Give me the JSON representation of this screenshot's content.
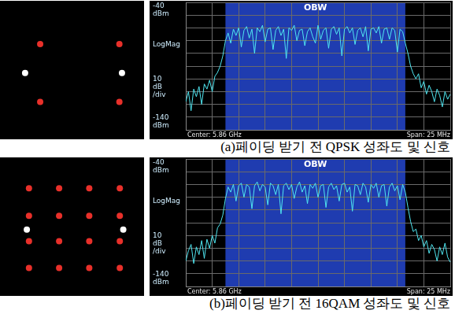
{
  "captions": [
    "(a)페이딩 받기 전 QPSK 성좌도 및 신호",
    "(b)페이딩 받기 전 16QAM 성좌도 및 신호"
  ],
  "chart_data": [
    {
      "type": "scatter",
      "xlim": [
        -1.6,
        1.6
      ],
      "ylim": [
        -1.6,
        1.6
      ],
      "grid": false,
      "tick_labels": false,
      "marker": "circle",
      "series": [
        {
          "color": "#e8302a",
          "x": [
            -0.74,
            1.1,
            -0.74,
            1.1
          ],
          "values": [
            0.63,
            0.63,
            -0.77,
            -0.77
          ]
        },
        {
          "color": "#ffffff",
          "x": [
            -1.09,
            1.16
          ],
          "values": [
            -0.07,
            -0.07
          ]
        }
      ]
    },
    {
      "type": "line",
      "title": "OBW",
      "color": "#4fe6f0",
      "grid": true,
      "tick_labels": false,
      "y_axis_texts": [
        "-40 dBm",
        "LogMag",
        "10 dB /div",
        "-140 dBm"
      ],
      "footer": [
        "Center: 5.86 GHz",
        "Span: 25 MHz"
      ],
      "obw_range": [
        -8.75,
        8.25
      ],
      "xlim": [
        -12.5,
        12.5
      ],
      "xticks": [
        -12.5,
        -10,
        -7.5,
        -5,
        -2.5,
        0,
        2.5,
        5,
        7.5,
        10,
        12.5
      ],
      "ylim": [
        -140,
        -40
      ],
      "yticks": [
        -140,
        -130,
        -120,
        -110,
        -100,
        -90,
        -80,
        -70,
        -60,
        -50,
        -40
      ],
      "x": [
        -12.5,
        -12.25,
        -12,
        -11.75,
        -11.5,
        -11.25,
        -11,
        -10.75,
        -10.5,
        -10.25,
        -10,
        -9.75,
        -9.5,
        -9.25,
        -9,
        -8.75,
        -8.5,
        -8.25,
        -8,
        -7.75,
        -7.5,
        -7.25,
        -7,
        -6.75,
        -6.5,
        -6.25,
        -6,
        -5.75,
        -5.5,
        -5.25,
        -5,
        -4.75,
        -4.5,
        -4.25,
        -4,
        -3.75,
        -3.5,
        -3.25,
        -3,
        -2.75,
        -2.5,
        -2.25,
        -2,
        -1.75,
        -1.5,
        -1.25,
        -1,
        -0.75,
        -0.5,
        -0.25,
        0,
        0.25,
        0.5,
        0.75,
        1,
        1.25,
        1.5,
        1.75,
        2,
        2.25,
        2.5,
        2.75,
        3,
        3.25,
        3.5,
        3.75,
        4,
        4.25,
        4.5,
        4.75,
        5,
        5.25,
        5.5,
        5.75,
        6,
        6.25,
        6.5,
        6.75,
        7,
        7.25,
        7.5,
        7.75,
        8,
        8.25,
        8.5,
        8.75,
        9,
        9.25,
        9.5,
        9.75,
        10,
        10.25,
        10.5,
        10.75,
        11,
        11.25,
        11.5,
        11.75,
        12,
        12.25,
        12.5
      ],
      "values": [
        -118,
        -110,
        -125,
        -108,
        -114,
        -106,
        -120,
        -104,
        -108,
        -101,
        -110,
        -98,
        -95,
        -90,
        -82,
        -70,
        -64,
        -72,
        -61,
        -66,
        -60,
        -75,
        -62,
        -59,
        -68,
        -61,
        -80,
        -60,
        -63,
        -58,
        -71,
        -61,
        -60,
        -77,
        -62,
        -59,
        -66,
        -61,
        -84,
        -60,
        -62,
        -58,
        -70,
        -62,
        -61,
        -74,
        -63,
        -60,
        -67,
        -72,
        -58,
        -69,
        -62,
        -60,
        -76,
        -61,
        -59,
        -65,
        -60,
        -82,
        -61,
        -59,
        -64,
        -60,
        -73,
        -62,
        -60,
        -67,
        -59,
        -78,
        -61,
        -60,
        -64,
        -59,
        -72,
        -61,
        -60,
        -69,
        -60,
        -62,
        -79,
        -61,
        -63,
        -72,
        -80,
        -90,
        -96,
        -100,
        -96,
        -107,
        -102,
        -112,
        -105,
        -110,
        -118,
        -108,
        -113,
        -122,
        -110,
        -116,
        -112
      ]
    },
    {
      "type": "scatter",
      "xlim": [
        -1.6,
        1.6
      ],
      "ylim": [
        -1.6,
        1.6
      ],
      "grid": false,
      "tick_labels": false,
      "marker": "circle",
      "series": [
        {
          "color": "#e8302a",
          "x": [
            -1.0,
            -0.3,
            0.4,
            1.11,
            -1.0,
            -0.3,
            0.4,
            1.11,
            -1.0,
            -0.3,
            0.4,
            1.11,
            -1.0,
            -0.3,
            0.4,
            1.11
          ],
          "values": [
            0.93,
            0.93,
            0.93,
            0.93,
            0.26,
            0.26,
            0.26,
            0.26,
            -0.35,
            -0.35,
            -0.35,
            -0.35,
            -1.0,
            -1.0,
            -1.0,
            -1.0
          ]
        },
        {
          "color": "#ffffff",
          "x": [
            -1.05,
            1.19
          ],
          "values": [
            -0.07,
            -0.07
          ]
        }
      ]
    },
    {
      "type": "line",
      "title": "OBW",
      "color": "#4fe6f0",
      "grid": true,
      "tick_labels": false,
      "y_axis_texts": [
        "-40 dBm",
        "LogMag",
        "10 dB /div",
        "-140 dBm"
      ],
      "footer": [
        "Center: 5.86 GHz",
        "Span: 25 MHz"
      ],
      "obw_range": [
        -8.75,
        8.25
      ],
      "xlim": [
        -12.5,
        12.5
      ],
      "xticks": [
        -12.5,
        -10,
        -7.5,
        -5,
        -2.5,
        0,
        2.5,
        5,
        7.5,
        10,
        12.5
      ],
      "ylim": [
        -140,
        -40
      ],
      "yticks": [
        -140,
        -130,
        -120,
        -110,
        -100,
        -90,
        -80,
        -70,
        -60,
        -50,
        -40
      ],
      "x": [
        -12.5,
        -12.25,
        -12,
        -11.75,
        -11.5,
        -11.25,
        -11,
        -10.75,
        -10.5,
        -10.25,
        -10,
        -9.75,
        -9.5,
        -9.25,
        -9,
        -8.75,
        -8.5,
        -8.25,
        -8,
        -7.75,
        -7.5,
        -7.25,
        -7,
        -6.75,
        -6.5,
        -6.25,
        -6,
        -5.75,
        -5.5,
        -5.25,
        -5,
        -4.75,
        -4.5,
        -4.25,
        -4,
        -3.75,
        -3.5,
        -3.25,
        -3,
        -2.75,
        -2.5,
        -2.25,
        -2,
        -1.75,
        -1.5,
        -1.25,
        -1,
        -0.75,
        -0.5,
        -0.25,
        0,
        0.25,
        0.5,
        0.75,
        1,
        1.25,
        1.5,
        1.75,
        2,
        2.25,
        2.5,
        2.75,
        3,
        3.25,
        3.5,
        3.75,
        4,
        4.25,
        4.5,
        4.75,
        5,
        5.25,
        5.5,
        5.75,
        6,
        6.25,
        6.5,
        6.75,
        7,
        7.25,
        7.5,
        7.75,
        8,
        8.25,
        8.5,
        8.75,
        9,
        9.25,
        9.5,
        9.75,
        10,
        10.25,
        10.5,
        10.75,
        11,
        11.25,
        11.5,
        11.75,
        12,
        12.25,
        12.5
      ],
      "values": [
        -120,
        -112,
        -107,
        -122,
        -109,
        -115,
        -104,
        -118,
        -103,
        -110,
        -100,
        -106,
        -94,
        -91,
        -84,
        -71,
        -62,
        -66,
        -60,
        -73,
        -61,
        -59,
        -70,
        -60,
        -62,
        -79,
        -61,
        -58,
        -65,
        -60,
        -62,
        -76,
        -59,
        -61,
        -68,
        -60,
        -83,
        -61,
        -59,
        -64,
        -60,
        -71,
        -62,
        -58,
        -66,
        -61,
        -75,
        -60,
        -63,
        -59,
        -70,
        -61,
        -60,
        -78,
        -62,
        -59,
        -64,
        -61,
        -73,
        -60,
        -59,
        -66,
        -62,
        -81,
        -60,
        -61,
        -68,
        -59,
        -62,
        -74,
        -60,
        -63,
        -59,
        -70,
        -61,
        -60,
        -77,
        -62,
        -59,
        -65,
        -61,
        -72,
        -60,
        -66,
        -78,
        -89,
        -97,
        -95,
        -104,
        -100,
        -109,
        -104,
        -114,
        -107,
        -111,
        -120,
        -109,
        -115,
        -106,
        -117,
        -121
      ]
    }
  ]
}
